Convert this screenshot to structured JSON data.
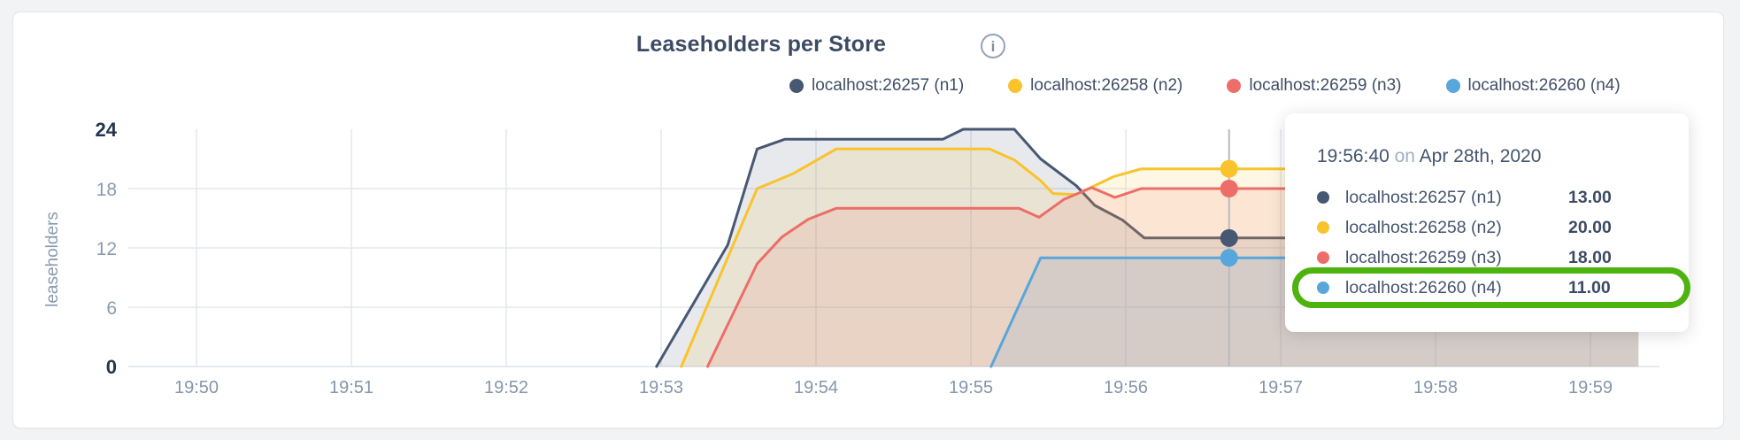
{
  "page_background": "#f2f3f5",
  "card": {
    "title": "Leaseholders per Store",
    "info_icon": "i"
  },
  "legend": {
    "items": [
      {
        "label": "localhost:26257 (n1)",
        "color": "#475872"
      },
      {
        "label": "localhost:26258 (n2)",
        "color": "#F9C32B"
      },
      {
        "label": "localhost:26259 (n3)",
        "color": "#ED6D68"
      },
      {
        "label": "localhost:26260 (n4)",
        "color": "#57A6DC"
      }
    ]
  },
  "tooltip": {
    "time": "19:56:40",
    "conjunction": "on",
    "date": "Apr 28th, 2020",
    "highlight_color": "#4EB30F",
    "rows": [
      {
        "label": "localhost:26257 (n1)",
        "value": "13.00",
        "color": "#475872",
        "highlighted": false
      },
      {
        "label": "localhost:26258 (n2)",
        "value": "20.00",
        "color": "#F9C32B",
        "highlighted": false
      },
      {
        "label": "localhost:26259 (n3)",
        "value": "18.00",
        "color": "#ED6D68",
        "highlighted": false
      },
      {
        "label": "localhost:26260 (n4)",
        "value": "11.00",
        "color": "#57A6DC",
        "highlighted": true
      }
    ]
  },
  "chart_data": {
    "type": "area",
    "title": "Leaseholders per Store",
    "ylabel": "leaseholders",
    "ylim": [
      0,
      24
    ],
    "y_ticks": [
      0,
      6,
      12,
      18,
      24
    ],
    "y_gridlines": [
      6,
      12,
      18
    ],
    "x_tick_labels": [
      "19:50",
      "19:51",
      "19:52",
      "19:53",
      "19:54",
      "19:55",
      "19:56",
      "19:57",
      "19:58",
      "19:59"
    ],
    "x_minutes_range": [
      0,
      9.31
    ],
    "grid": true,
    "legend_position": "top",
    "series": [
      {
        "name": "localhost:26257 (n1)",
        "color": "#475872",
        "points": [
          [
            2.97,
            0
          ],
          [
            3.43,
            12.3
          ],
          [
            3.62,
            22
          ],
          [
            3.8,
            23
          ],
          [
            4.82,
            23
          ],
          [
            4.95,
            24
          ],
          [
            5.28,
            24
          ],
          [
            5.45,
            21
          ],
          [
            5.68,
            18.3
          ],
          [
            5.8,
            16.3
          ],
          [
            5.98,
            14.8
          ],
          [
            6.12,
            13
          ],
          [
            9.31,
            13
          ]
        ]
      },
      {
        "name": "localhost:26258 (n2)",
        "color": "#F9C32B",
        "points": [
          [
            3.13,
            0
          ],
          [
            3.62,
            18
          ],
          [
            3.85,
            19.5
          ],
          [
            4.13,
            22
          ],
          [
            5.12,
            22
          ],
          [
            5.28,
            20.9
          ],
          [
            5.45,
            18.8
          ],
          [
            5.53,
            17.5
          ],
          [
            5.68,
            17.4
          ],
          [
            5.92,
            19.2
          ],
          [
            6.1,
            20
          ],
          [
            9.31,
            20
          ]
        ]
      },
      {
        "name": "localhost:26259 (n3)",
        "color": "#ED6D68",
        "points": [
          [
            3.3,
            0
          ],
          [
            3.62,
            10.4
          ],
          [
            3.78,
            13.1
          ],
          [
            3.95,
            14.9
          ],
          [
            4.13,
            16
          ],
          [
            5.31,
            16
          ],
          [
            5.44,
            15.1
          ],
          [
            5.6,
            16.9
          ],
          [
            5.78,
            18.1
          ],
          [
            5.93,
            17.1
          ],
          [
            6.1,
            18
          ],
          [
            9.31,
            18
          ]
        ]
      },
      {
        "name": "localhost:26260 (n4)",
        "color": "#57A6DC",
        "points": [
          [
            5.13,
            0
          ],
          [
            5.45,
            11
          ],
          [
            9.31,
            11
          ]
        ]
      }
    ],
    "hover": {
      "x_minutes": 6.667,
      "time_label": "19:56:40 on Apr 28th, 2020",
      "values": [
        13,
        20,
        18,
        11
      ]
    }
  }
}
